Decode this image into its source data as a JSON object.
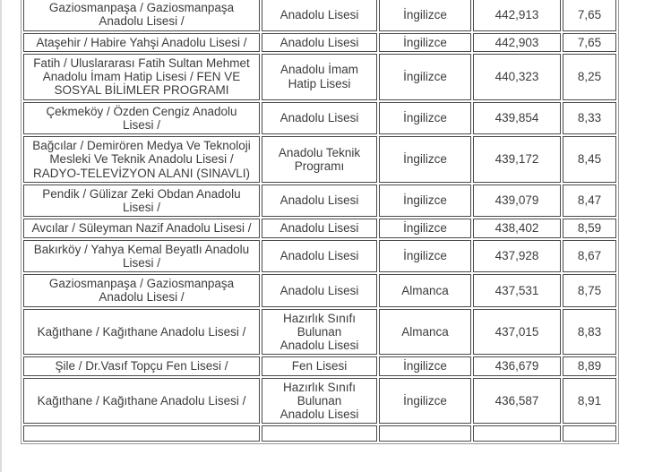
{
  "page": {
    "background_color": "#ffffff",
    "text_color": "#3c3c3c",
    "cell_border_color": "#4a4a4a",
    "outer_border_color": "#9a9a9a"
  },
  "table": {
    "rows": [
      {
        "school": "Gaziosmanpaşa / Gaziosmanpaşa Anadolu Lisesi /",
        "type": "Anadolu Lisesi",
        "language": "İngilizce",
        "score": "442,913",
        "percentile": "7,65"
      },
      {
        "school": "Ataşehir / Habire Yahşi Anadolu Lisesi /",
        "type": "Anadolu Lisesi",
        "language": "İngilizce",
        "score": "442,903",
        "percentile": "7,65"
      },
      {
        "school": "Fatih / Uluslararası Fatih Sultan Mehmet Anadolu İmam Hatip Lisesi / FEN VE SOSYAL BİLİMLER PROGRAMI",
        "type": "Anadolu İmam\nHatip Lisesi",
        "language": "İngilizce",
        "score": "440,323",
        "percentile": "8,25"
      },
      {
        "school": "Çekmeköy / Özden Cengiz Anadolu Lisesi /",
        "type": "Anadolu Lisesi",
        "language": "İngilizce",
        "score": "439,854",
        "percentile": "8,33"
      },
      {
        "school": "Bağcılar / Demirören Medya Ve Teknoloji Mesleki Ve Teknik Anadolu Lisesi / RADYO-TELEVİZYON ALANI (SINAVLI)",
        "type": "Anadolu Teknik\nProgramı",
        "language": "İngilizce",
        "score": "439,172",
        "percentile": "8,45"
      },
      {
        "school": "Pendik / Gülizar Zeki Obdan Anadolu Lisesi /",
        "type": "Anadolu Lisesi",
        "language": "İngilizce",
        "score": "439,079",
        "percentile": "8,47"
      },
      {
        "school": "Avcılar / Süleyman Nazif Anadolu Lisesi /",
        "type": "Anadolu Lisesi",
        "language": "İngilizce",
        "score": "438,402",
        "percentile": "8,59"
      },
      {
        "school": "Bakırköy / Yahya Kemal Beyatlı Anadolu Lisesi /",
        "type": "Anadolu Lisesi",
        "language": "İngilizce",
        "score": "437,928",
        "percentile": "8,67"
      },
      {
        "school": "Gaziosmanpaşa / Gaziosmanpaşa Anadolu Lisesi /",
        "type": "Anadolu Lisesi",
        "language": "Almanca",
        "score": "437,531",
        "percentile": "8,75"
      },
      {
        "school": "Kağıthane / Kağıthane Anadolu Lisesi /",
        "type": "Hazırlık Sınıfı\nBulunan\nAnadolu Lisesi",
        "language": "Almanca",
        "score": "437,015",
        "percentile": "8,83"
      },
      {
        "school": "Şile / Dr.Vasıf Topçu Fen Lisesi /",
        "type": "Fen Lisesi",
        "language": "İngilizce",
        "score": "436,679",
        "percentile": "8,89"
      },
      {
        "school": "Kağıthane / Kağıthane Anadolu Lisesi /",
        "type": "Hazırlık Sınıfı\nBulunan\nAnadolu Lisesi",
        "language": "İngilizce",
        "score": "436,587",
        "percentile": "8,91"
      }
    ]
  }
}
